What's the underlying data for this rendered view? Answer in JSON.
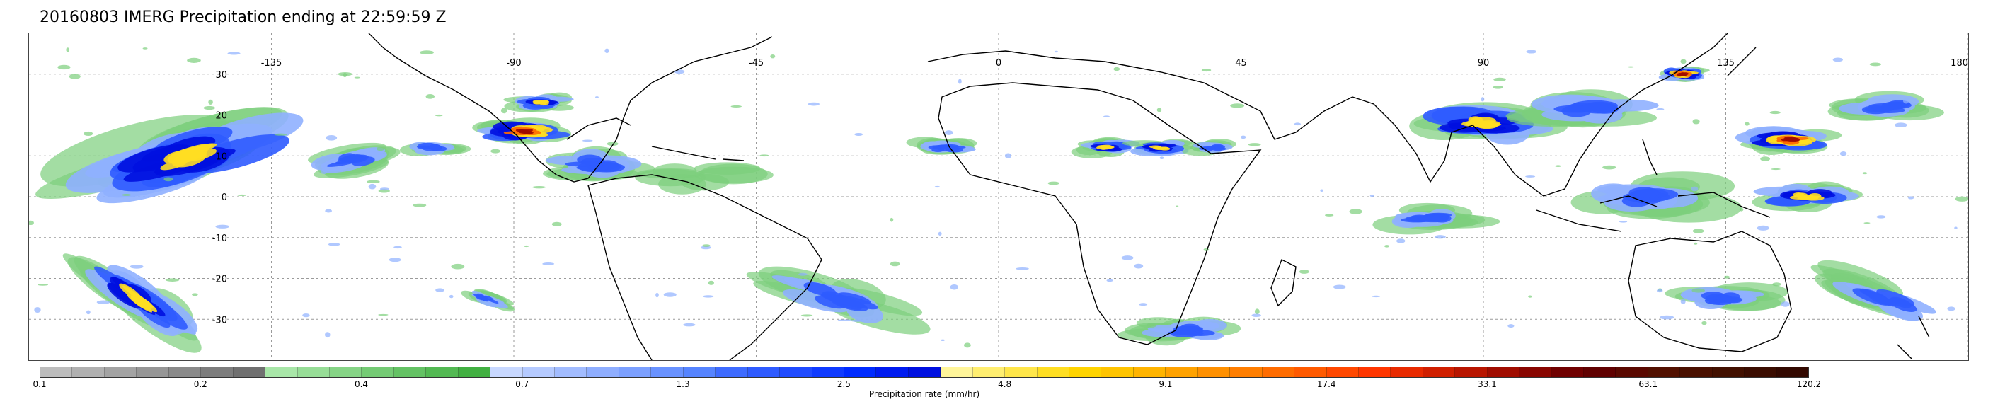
{
  "title": "20160803 IMERG Precipitation ending at 22:59:59 Z",
  "map": {
    "projection": "equirectangular",
    "lon_range": [
      -180,
      180
    ],
    "lat_range": [
      -40,
      40
    ],
    "lon_ticks": [
      "-135",
      "-90",
      "-45",
      "0",
      "45",
      "90",
      "135",
      "180"
    ],
    "lat_ticks": [
      "30",
      "20",
      "10",
      "0",
      "-10",
      "-20",
      "-30"
    ],
    "gridlines": true,
    "coastline_color": "#000000",
    "grid_color": "#9a9a9a"
  },
  "precip_cells": [
    {
      "lon": -150,
      "lat": 10,
      "level": "high",
      "spread": 25,
      "angle": -15
    },
    {
      "lon": -120,
      "lat": 9,
      "level": "mid",
      "spread": 10,
      "angle": -10
    },
    {
      "lon": -105,
      "lat": 12,
      "level": "mid",
      "spread": 6,
      "angle": 0
    },
    {
      "lon": -88,
      "lat": 16,
      "level": "very-high",
      "spread": 9,
      "angle": 0
    },
    {
      "lon": -85,
      "lat": 23,
      "level": "high",
      "spread": 6,
      "angle": 0
    },
    {
      "lon": -75,
      "lat": 8,
      "level": "mid",
      "spread": 12,
      "angle": 0
    },
    {
      "lon": -55,
      "lat": 5,
      "level": "low",
      "spread": 10,
      "angle": 0
    },
    {
      "lon": -160,
      "lat": -25,
      "level": "high",
      "spread": 14,
      "angle": 35
    },
    {
      "lon": -95,
      "lat": -25,
      "level": "mid",
      "spread": 5,
      "angle": 20
    },
    {
      "lon": -30,
      "lat": -25,
      "level": "mid",
      "spread": 14,
      "angle": 15
    },
    {
      "lon": -10,
      "lat": 12,
      "level": "mid",
      "spread": 7,
      "angle": 0
    },
    {
      "lon": 20,
      "lat": 12,
      "level": "high",
      "spread": 6,
      "angle": 0
    },
    {
      "lon": 30,
      "lat": 12,
      "level": "high",
      "spread": 6,
      "angle": 0
    },
    {
      "lon": 40,
      "lat": 12,
      "level": "mid",
      "spread": 5,
      "angle": 0
    },
    {
      "lon": 35,
      "lat": -33,
      "level": "mid",
      "spread": 10,
      "angle": 0
    },
    {
      "lon": 90,
      "lat": 18,
      "level": "high",
      "spread": 14,
      "angle": 0
    },
    {
      "lon": 110,
      "lat": 22,
      "level": "mid",
      "spread": 14,
      "angle": 0
    },
    {
      "lon": 127,
      "lat": 30,
      "level": "very-high",
      "spread": 5,
      "angle": 0
    },
    {
      "lon": 147,
      "lat": 14,
      "level": "very-high",
      "spread": 9,
      "angle": 0
    },
    {
      "lon": 165,
      "lat": 22,
      "level": "mid",
      "spread": 10,
      "angle": 0
    },
    {
      "lon": 120,
      "lat": 0,
      "level": "mid",
      "spread": 14,
      "angle": 0
    },
    {
      "lon": 150,
      "lat": 0,
      "level": "high",
      "spread": 10,
      "angle": 0
    },
    {
      "lon": 80,
      "lat": -5,
      "level": "mid",
      "spread": 10,
      "angle": 0
    },
    {
      "lon": 135,
      "lat": -25,
      "level": "mid",
      "spread": 10,
      "angle": 0
    },
    {
      "lon": 165,
      "lat": -25,
      "level": "mid",
      "spread": 12,
      "angle": 20
    }
  ],
  "colorbar": {
    "label": "Precipitation rate (mm/hr)",
    "tick_labels": [
      "0.1",
      "0.2",
      "0.4",
      "0.7",
      "1.3",
      "2.5",
      "4.8",
      "9.1",
      "17.4",
      "33.1",
      "63.1",
      "120.2"
    ],
    "colors": [
      "#bdbdbd",
      "#b0b0b0",
      "#a3a3a3",
      "#969696",
      "#8a8a8a",
      "#7d7d7d",
      "#707070",
      "#a8e6a8",
      "#97dd97",
      "#86d486",
      "#75cb75",
      "#64c264",
      "#53b953",
      "#42b042",
      "#c8d8ff",
      "#b5caff",
      "#a2bcff",
      "#8faeff",
      "#7ca0ff",
      "#6992ff",
      "#5684ff",
      "#3e6bff",
      "#2f5bff",
      "#204bff",
      "#103bff",
      "#002bff",
      "#001bf0",
      "#0010e0",
      "#fff59a",
      "#ffee70",
      "#ffe64a",
      "#ffde22",
      "#ffd400",
      "#ffc400",
      "#ffb400",
      "#ffa200",
      "#ff9000",
      "#ff7e00",
      "#ff6c00",
      "#ff5a00",
      "#ff4800",
      "#ff3600",
      "#e82a00",
      "#d01f00",
      "#b81500",
      "#a00c00",
      "#880500",
      "#700000",
      "#600000",
      "#5a0800",
      "#521000",
      "#4a1000",
      "#421000",
      "#3a0c00",
      "#320800"
    ]
  }
}
